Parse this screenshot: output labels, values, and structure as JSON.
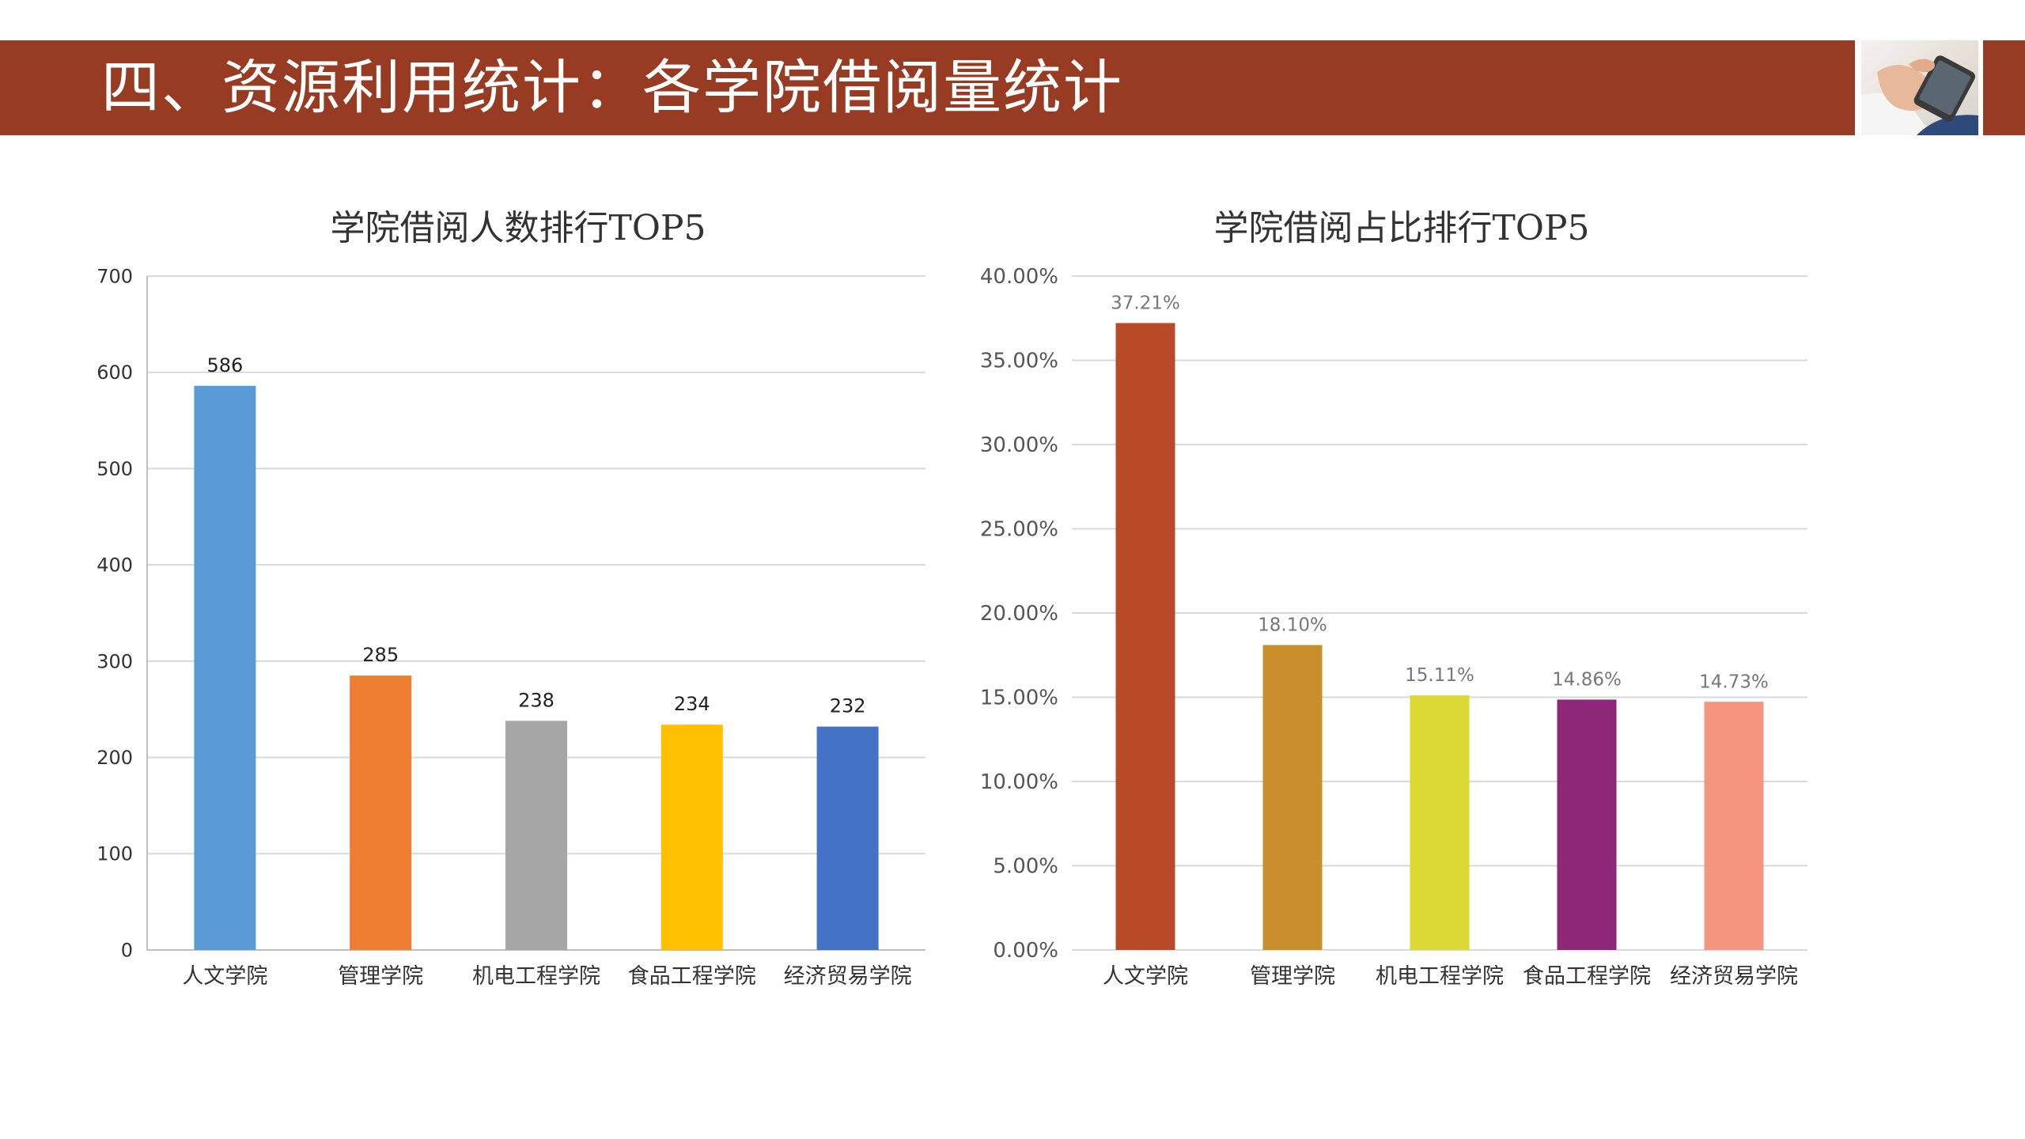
{
  "header": {
    "title": "四、资源利用统计：各学院借阅量统计"
  },
  "colors": {
    "header_band": "#973b22",
    "grid": "#d9d9d9"
  },
  "chart_data": [
    {
      "type": "bar",
      "title": "学院借阅人数排行TOP5",
      "categories": [
        "人文学院",
        "管理学院",
        "机电工程学院",
        "食品工程学院",
        "经济贸易学院"
      ],
      "values": [
        586,
        285,
        238,
        234,
        232
      ],
      "data_labels": [
        "586",
        "285",
        "238",
        "234",
        "232"
      ],
      "colors": [
        "#5b9bd5",
        "#ed7d31",
        "#a5a5a5",
        "#ffc000",
        "#4472c4"
      ],
      "ylim": [
        0,
        700
      ],
      "yticks": [
        "0",
        "100",
        "200",
        "300",
        "400",
        "500",
        "600",
        "700"
      ],
      "ytick_values": [
        0,
        100,
        200,
        300,
        400,
        500,
        600,
        700
      ],
      "grid": true,
      "legend": "none"
    },
    {
      "type": "bar",
      "title": "学院借阅占比排行TOP5",
      "categories": [
        "人文学院",
        "管理学院",
        "机电工程学院",
        "食品工程学院",
        "经济贸易学院"
      ],
      "values": [
        37.21,
        18.1,
        15.11,
        14.86,
        14.73
      ],
      "data_labels": [
        "37.21%",
        "18.10%",
        "15.11%",
        "14.86%",
        "14.73%"
      ],
      "colors": [
        "#b94a27",
        "#c98f2c",
        "#dcd834",
        "#8e2778",
        "#f4967f"
      ],
      "ylim": [
        0,
        40
      ],
      "yticks": [
        "0.00%",
        "5.00%",
        "10.00%",
        "15.00%",
        "20.00%",
        "25.00%",
        "30.00%",
        "35.00%",
        "40.00%"
      ],
      "ytick_values": [
        0,
        5,
        10,
        15,
        20,
        25,
        30,
        35,
        40
      ],
      "grid": true,
      "legend": "none"
    }
  ]
}
